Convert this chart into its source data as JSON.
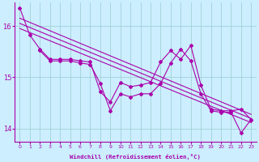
{
  "xlabel": "Windchill (Refroidissement éolien,°C)",
  "ylabel": "",
  "xlim": [
    -0.5,
    23.5
  ],
  "ylim": [
    13.75,
    16.45
  ],
  "yticks": [
    14,
    15,
    16
  ],
  "xticks": [
    0,
    1,
    2,
    3,
    4,
    5,
    6,
    7,
    8,
    9,
    10,
    11,
    12,
    13,
    14,
    15,
    16,
    17,
    18,
    19,
    20,
    21,
    22,
    23
  ],
  "bg_color": "#cceeff",
  "line_color": "#aa00aa",
  "grid_color": "#99cccc",
  "series1_x": [
    0,
    1,
    2,
    3,
    4,
    5,
    6,
    7,
    8,
    9,
    10,
    11,
    12,
    13,
    14,
    15,
    16,
    17,
    18,
    19,
    20,
    21,
    22,
    23
  ],
  "series1_y": [
    16.35,
    15.82,
    15.55,
    15.35,
    15.35,
    15.35,
    15.32,
    15.3,
    14.72,
    14.52,
    14.9,
    14.82,
    14.85,
    14.9,
    15.3,
    15.52,
    15.35,
    15.62,
    14.85,
    14.38,
    14.35,
    14.35,
    14.38,
    14.18
  ],
  "series2_x": [
    2,
    3,
    4,
    5,
    6,
    7,
    8,
    9,
    10,
    11,
    12,
    13,
    14,
    15,
    16,
    17,
    18,
    19,
    20,
    21,
    22,
    23
  ],
  "series2_y": [
    15.52,
    15.32,
    15.32,
    15.32,
    15.28,
    15.25,
    14.88,
    14.35,
    14.68,
    14.62,
    14.68,
    14.68,
    14.88,
    15.28,
    15.55,
    15.32,
    14.68,
    14.35,
    14.32,
    14.32,
    13.92,
    14.18
  ],
  "reg_lines": [
    {
      "x": [
        0,
        23
      ],
      "y": [
        16.15,
        14.28
      ]
    },
    {
      "x": [
        0,
        23
      ],
      "y": [
        16.05,
        14.2
      ]
    },
    {
      "x": [
        0,
        23
      ],
      "y": [
        15.95,
        14.12
      ]
    }
  ]
}
